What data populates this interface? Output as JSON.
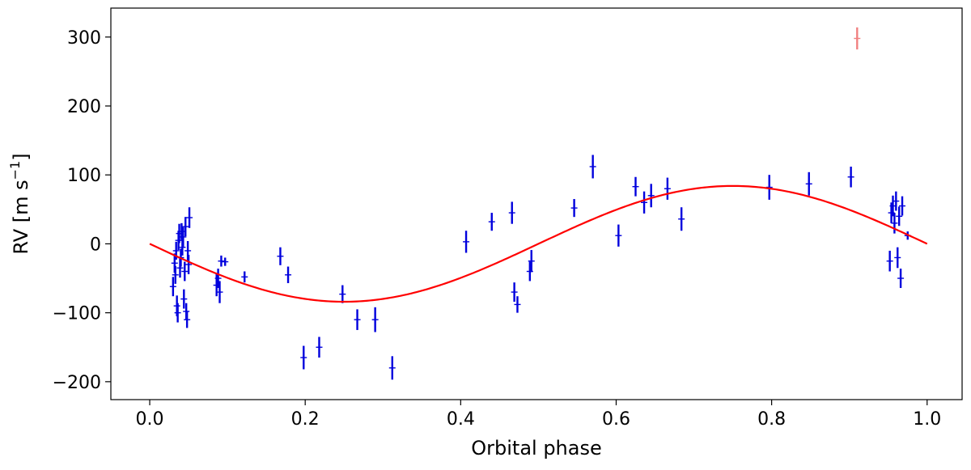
{
  "chart_data": {
    "type": "scatter",
    "xlabel": "Orbital phase",
    "ylabel": "RV [m s",
    "ylabel_sup": "−1",
    "ylabel_end": "]",
    "xlim": [
      -0.05,
      1.045
    ],
    "ylim": [
      -226,
      342
    ],
    "xticks": [
      0.0,
      0.2,
      0.4,
      0.6,
      0.8,
      1.0
    ],
    "xtick_labels": [
      "0.0",
      "0.2",
      "0.4",
      "0.6",
      "0.8",
      "1.0"
    ],
    "yticks": [
      -200,
      -100,
      0,
      100,
      200,
      300
    ],
    "ytick_labels": [
      "−200",
      "−100",
      "0",
      "100",
      "200",
      "300"
    ],
    "grid": false,
    "model": {
      "color": "#ff0000",
      "amplitude": 84,
      "description_form": "-K*sin(2*pi*phase)"
    },
    "series_color": "#0000dd",
    "outlier_color": "#f08080",
    "points": [
      [
        0.03,
        -62,
        14
      ],
      [
        0.032,
        -28,
        14
      ],
      [
        0.033,
        -45,
        13
      ],
      [
        0.034,
        -10,
        13
      ],
      [
        0.035,
        -90,
        15
      ],
      [
        0.036,
        -100,
        14
      ],
      [
        0.037,
        5,
        14
      ],
      [
        0.038,
        15,
        14
      ],
      [
        0.039,
        -35,
        14
      ],
      [
        0.04,
        -20,
        13
      ],
      [
        0.041,
        18,
        12
      ],
      [
        0.042,
        -5,
        12
      ],
      [
        0.043,
        10,
        14
      ],
      [
        0.044,
        -80,
        14
      ],
      [
        0.045,
        -40,
        14
      ],
      [
        0.046,
        25,
        14
      ],
      [
        0.047,
        -98,
        12
      ],
      [
        0.048,
        -110,
        12
      ],
      [
        0.049,
        -10,
        14
      ],
      [
        0.05,
        -30,
        14
      ],
      [
        0.051,
        38,
        15
      ],
      [
        0.086,
        -60,
        16
      ],
      [
        0.088,
        -50,
        14
      ],
      [
        0.09,
        -70,
        16
      ],
      [
        0.092,
        -25,
        8
      ],
      [
        0.097,
        -26,
        6
      ],
      [
        0.122,
        -48,
        8
      ],
      [
        0.168,
        -18,
        13
      ],
      [
        0.178,
        -45,
        12
      ],
      [
        0.198,
        -165,
        17
      ],
      [
        0.218,
        -150,
        15
      ],
      [
        0.248,
        -73,
        13
      ],
      [
        0.267,
        -110,
        15
      ],
      [
        0.29,
        -110,
        18
      ],
      [
        0.312,
        -180,
        17
      ],
      [
        0.407,
        3,
        16
      ],
      [
        0.44,
        32,
        13
      ],
      [
        0.466,
        45,
        16
      ],
      [
        0.469,
        -70,
        14
      ],
      [
        0.473,
        -88,
        12
      ],
      [
        0.489,
        -40,
        14
      ],
      [
        0.491,
        -25,
        16
      ],
      [
        0.546,
        52,
        13
      ],
      [
        0.57,
        112,
        17
      ],
      [
        0.603,
        12,
        16
      ],
      [
        0.625,
        83,
        14
      ],
      [
        0.636,
        60,
        16
      ],
      [
        0.645,
        70,
        17
      ],
      [
        0.666,
        80,
        16
      ],
      [
        0.684,
        36,
        17
      ],
      [
        0.797,
        82,
        18
      ],
      [
        0.848,
        87,
        17
      ],
      [
        0.902,
        97,
        15
      ],
      [
        0.952,
        -25,
        15
      ],
      [
        0.954,
        45,
        15
      ],
      [
        0.956,
        55,
        15
      ],
      [
        0.958,
        30,
        15
      ],
      [
        0.96,
        62,
        14
      ],
      [
        0.962,
        -20,
        15
      ],
      [
        0.964,
        40,
        14
      ],
      [
        0.966,
        -50,
        14
      ],
      [
        0.968,
        55,
        14
      ],
      [
        0.975,
        12,
        6
      ]
    ],
    "outliers": [
      [
        0.91,
        298,
        16
      ]
    ]
  }
}
